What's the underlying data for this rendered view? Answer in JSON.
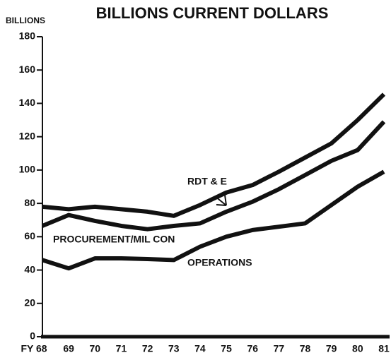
{
  "chart_data": {
    "type": "line",
    "title": "BILLIONS CURRENT DOLLARS",
    "y_label": "BILLIONS",
    "categories": [
      "FY 68",
      "69",
      "70",
      "71",
      "72",
      "73",
      "74",
      "75",
      "76",
      "77",
      "78",
      "79",
      "80",
      "81"
    ],
    "series": [
      {
        "name": "RDT & E",
        "color": "#111111",
        "values": [
          78,
          76.5,
          78,
          76.5,
          75,
          72.5,
          79,
          86.5,
          91,
          99,
          107.5,
          116,
          130,
          145.5
        ]
      },
      {
        "name": "PROCUREMENT/MIL CON",
        "color": "#111111",
        "values": [
          66.5,
          73,
          69.5,
          66.5,
          64.5,
          66.5,
          68,
          75,
          81,
          88.5,
          97,
          105.5,
          112,
          129
        ]
      },
      {
        "name": "OPERATIONS",
        "color": "#111111",
        "values": [
          46,
          41,
          47,
          47,
          46.6,
          46,
          54,
          60,
          64,
          66,
          68,
          79,
          90,
          99
        ]
      }
    ],
    "ylim": [
      0,
      180
    ],
    "yticks": [
      0,
      20,
      40,
      60,
      80,
      100,
      120,
      140,
      160,
      180
    ]
  }
}
